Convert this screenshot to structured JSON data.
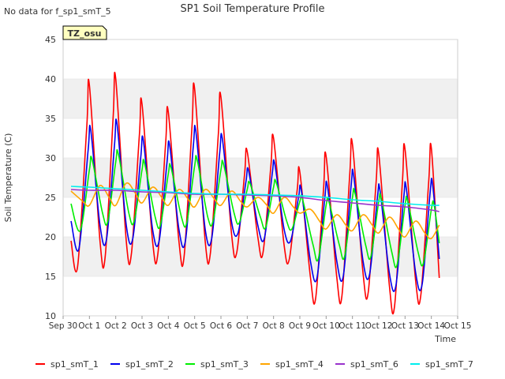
{
  "no_data_note": "No data for f_sp1_smT_5",
  "site_badge": "TZ_osu",
  "colors": {
    "sp1_smT_1": "#ff0000",
    "sp1_smT_2": "#0000ee",
    "sp1_smT_3": "#00ee00",
    "sp1_smT_4": "#ffa500",
    "sp1_smT_6": "#9932cc",
    "sp1_smT_7": "#00eeee",
    "band": "#f0f0f0",
    "badge_bg": "#ffffc0",
    "badge_text": "#aa0000"
  },
  "chart_data": {
    "type": "line",
    "title": "SP1 Soil Temperature Profile",
    "xlabel": "Time",
    "ylabel": "Soil Temperature (C)",
    "ylim": [
      10,
      45
    ],
    "yticks": [
      10,
      15,
      20,
      25,
      30,
      35,
      40,
      45
    ],
    "xlim": [
      0,
      15
    ],
    "xticks": [
      0,
      1,
      2,
      3,
      4,
      5,
      6,
      7,
      8,
      9,
      10,
      11,
      12,
      13,
      14,
      15
    ],
    "xtick_labels": [
      "Sep 30",
      "Oct 1",
      "Oct 2",
      "Oct 3",
      "Oct 4",
      "Oct 5",
      "Oct 6",
      "Oct 7",
      "Oct 8",
      "Oct 9",
      "Oct 10",
      "Oct 11",
      "Oct 12",
      "Oct 13",
      "Oct 14",
      "Oct 15"
    ],
    "x_unit": "days since Sep 30",
    "legend_position": "bottom",
    "series": [
      {
        "name": "sp1_smT_1",
        "x": [
          0.3,
          0.55,
          0.9,
          1.0,
          1.4,
          1.6,
          1.9,
          2.0,
          2.4,
          2.6,
          2.9,
          3.0,
          3.4,
          3.6,
          3.9,
          4.0,
          4.4,
          4.6,
          4.9,
          5.0,
          5.4,
          5.6,
          5.9,
          6.0,
          6.4,
          6.6,
          6.9,
          7.0,
          7.4,
          7.6,
          7.9,
          8.0,
          8.4,
          8.6,
          8.9,
          9.0,
          9.4,
          9.6,
          9.9,
          10.0,
          10.4,
          10.6,
          10.9,
          11.0,
          11.4,
          11.6,
          11.9,
          12.0,
          12.4,
          12.6,
          12.9,
          13.0,
          13.4,
          13.6,
          13.9,
          14.0,
          14.3
        ],
        "y": [
          19.5,
          16.2,
          34.0,
          39.2,
          19.5,
          17.5,
          35.0,
          40.0,
          19.5,
          18.0,
          33.0,
          36.8,
          19.5,
          17.8,
          32.0,
          35.8,
          19.5,
          17.5,
          34.0,
          38.7,
          19.5,
          18.0,
          33.0,
          37.7,
          20.5,
          18.0,
          28.0,
          30.8,
          20.0,
          18.0,
          29.0,
          32.5,
          19.0,
          17.2,
          26.0,
          28.2,
          15.0,
          12.2,
          26.0,
          30.2,
          15.0,
          12.5,
          28.0,
          31.7,
          15.5,
          13.0,
          27.0,
          30.5,
          14.0,
          11.2,
          27.0,
          31.1,
          14.5,
          12.6,
          27.0,
          31.2,
          14.8
        ]
      },
      {
        "name": "sp1_smT_2",
        "x": [
          0.3,
          0.6,
          0.95,
          1.05,
          1.4,
          1.65,
          1.95,
          2.05,
          2.4,
          2.65,
          2.95,
          3.05,
          3.4,
          3.65,
          3.95,
          4.05,
          4.4,
          4.65,
          4.95,
          5.05,
          5.4,
          5.65,
          5.95,
          6.05,
          6.4,
          6.65,
          6.95,
          7.05,
          7.4,
          7.65,
          7.95,
          8.05,
          8.4,
          8.65,
          8.95,
          9.05,
          9.4,
          9.65,
          9.95,
          10.05,
          10.4,
          10.65,
          10.95,
          11.05,
          11.4,
          11.65,
          11.95,
          12.05,
          12.4,
          12.65,
          12.95,
          13.05,
          13.4,
          13.65,
          13.95,
          14.05,
          14.3
        ],
        "y": [
          22.0,
          18.5,
          31.0,
          33.5,
          21.5,
          19.7,
          31.5,
          34.3,
          21.5,
          19.8,
          30.0,
          32.2,
          21.0,
          19.5,
          29.5,
          31.6,
          21.0,
          19.5,
          31.5,
          33.3,
          21.0,
          19.8,
          30.5,
          32.5,
          22.0,
          20.5,
          27.0,
          28.4,
          21.5,
          19.8,
          28.0,
          29.2,
          21.0,
          19.5,
          25.0,
          26.0,
          17.0,
          14.8,
          25.0,
          26.4,
          17.0,
          15.0,
          26.5,
          27.7,
          17.0,
          15.2,
          25.0,
          25.8,
          15.5,
          13.8,
          25.0,
          26.1,
          15.5,
          14.0,
          25.5,
          26.6,
          17.2
        ]
      },
      {
        "name": "sp1_smT_3",
        "x": [
          0.3,
          0.65,
          1.0,
          1.1,
          1.5,
          1.7,
          2.0,
          2.1,
          2.5,
          2.7,
          3.0,
          3.1,
          3.5,
          3.7,
          4.0,
          4.1,
          4.5,
          4.7,
          5.0,
          5.1,
          5.5,
          5.7,
          6.0,
          6.1,
          6.5,
          6.7,
          7.0,
          7.1,
          7.5,
          7.7,
          8.0,
          8.1,
          8.5,
          8.7,
          9.0,
          9.1,
          9.5,
          9.7,
          10.0,
          10.1,
          10.5,
          10.7,
          11.0,
          11.1,
          11.5,
          11.7,
          12.0,
          12.1,
          12.5,
          12.7,
          13.0,
          13.1,
          13.5,
          13.7,
          14.0,
          14.1,
          14.3
        ],
        "y": [
          24.2,
          20.8,
          28.5,
          29.8,
          23.0,
          22.0,
          29.5,
          30.5,
          23.0,
          22.0,
          28.5,
          29.3,
          22.5,
          21.5,
          28.0,
          28.8,
          22.5,
          21.8,
          29.0,
          29.7,
          22.5,
          22.0,
          28.5,
          29.2,
          23.0,
          21.8,
          26.0,
          26.8,
          22.5,
          21.2,
          26.3,
          26.9,
          22.0,
          21.0,
          24.5,
          24.8,
          19.0,
          17.2,
          24.0,
          24.5,
          19.0,
          17.5,
          25.0,
          25.5,
          19.0,
          17.5,
          24.5,
          24.8,
          18.0,
          16.5,
          24.0,
          24.5,
          18.0,
          16.7,
          23.5,
          24.1,
          19.2
        ]
      },
      {
        "name": "sp1_smT_4",
        "x": [
          0.3,
          0.75,
          1.0,
          1.4,
          1.75,
          2.0,
          2.4,
          2.75,
          3.0,
          3.4,
          3.75,
          4.0,
          4.4,
          4.75,
          5.0,
          5.4,
          5.75,
          6.0,
          6.4,
          6.75,
          7.0,
          7.4,
          7.75,
          8.0,
          8.4,
          8.75,
          9.0,
          9.4,
          9.75,
          10.0,
          10.4,
          10.75,
          11.0,
          11.4,
          11.75,
          12.0,
          12.4,
          12.75,
          13.0,
          13.4,
          13.75,
          14.0,
          14.3
        ],
        "y": [
          25.8,
          24.5,
          24.0,
          26.5,
          25.0,
          24.0,
          26.8,
          25.5,
          24.3,
          26.3,
          25.0,
          24.0,
          26.0,
          24.8,
          23.8,
          26.0,
          24.8,
          24.0,
          25.8,
          24.5,
          23.8,
          25.0,
          24.0,
          23.0,
          25.0,
          23.8,
          23.0,
          23.5,
          22.0,
          21.0,
          22.8,
          21.5,
          20.8,
          22.8,
          21.5,
          20.5,
          22.5,
          21.0,
          20.0,
          22.0,
          20.5,
          19.8,
          21.5
        ]
      },
      {
        "name": "sp1_smT_6",
        "x": [
          0.3,
          1,
          2,
          3,
          4,
          5,
          6,
          7,
          8,
          9,
          10,
          11,
          12,
          13,
          14,
          14.3
        ],
        "y": [
          26.0,
          25.9,
          25.9,
          25.7,
          25.6,
          25.4,
          25.4,
          25.3,
          25.2,
          25.0,
          24.6,
          24.3,
          24.0,
          23.8,
          23.4,
          23.2
        ]
      },
      {
        "name": "sp1_smT_7",
        "x": [
          0.3,
          1,
          2,
          3,
          4,
          5,
          6,
          7,
          8,
          9,
          10,
          11,
          12,
          13,
          14,
          14.3
        ],
        "y": [
          26.4,
          26.3,
          26.1,
          25.9,
          25.7,
          25.5,
          25.4,
          25.4,
          25.3,
          25.2,
          25.0,
          24.7,
          24.5,
          24.2,
          24.0,
          24.0
        ]
      }
    ]
  }
}
